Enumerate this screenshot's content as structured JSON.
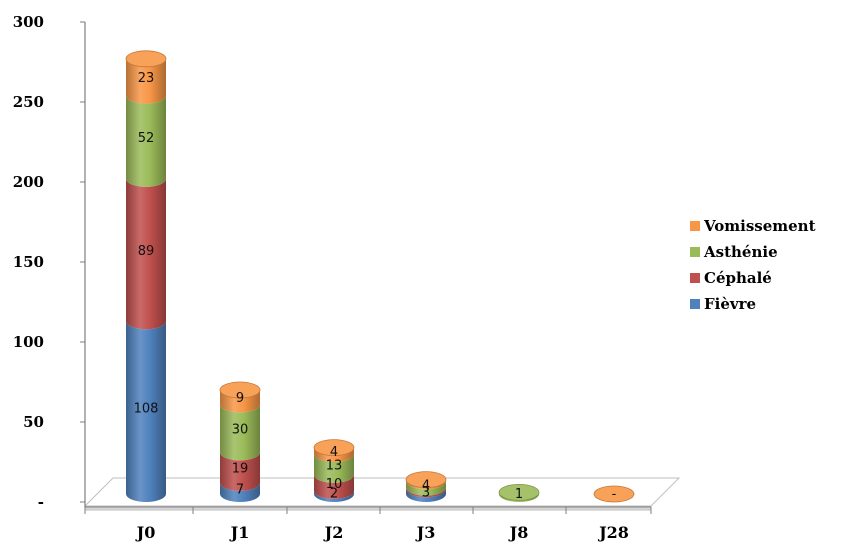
{
  "chart_data": {
    "type": "bar",
    "stacked": true,
    "style": "3d-cylinder",
    "categories": [
      "J0",
      "J1",
      "J2",
      "J3",
      "J8",
      "J28"
    ],
    "y_tick_labels": [
      "-",
      "50",
      "100",
      "150",
      "200",
      "250",
      "300"
    ],
    "ylim": [
      0,
      300
    ],
    "series": [
      {
        "name": "Fièvre",
        "color": "#4f81bd",
        "values": [
          108,
          7,
          2,
          3,
          0,
          0
        ],
        "labels": [
          "108",
          "7",
          "2",
          "3",
          "",
          ""
        ]
      },
      {
        "name": "Céphalé",
        "color": "#c0504d",
        "values": [
          89,
          19,
          10,
          1,
          0,
          0
        ],
        "labels": [
          "89",
          "19",
          "10",
          "",
          "",
          ""
        ]
      },
      {
        "name": "Asthénie",
        "color": "#9bbb59",
        "values": [
          52,
          30,
          13,
          4,
          1,
          0
        ],
        "labels": [
          "52",
          "30",
          "13",
          "4",
          "1",
          ""
        ]
      },
      {
        "name": "Vomissement",
        "color": "#f79646",
        "values": [
          23,
          9,
          4,
          1,
          0,
          0
        ],
        "labels": [
          "23",
          "9",
          "4",
          "",
          "",
          "-"
        ]
      }
    ],
    "legend_order": [
      "Vomissement",
      "Asthénie",
      "Céphalé",
      "Fièvre"
    ],
    "legend_position": "right",
    "grid": false
  }
}
